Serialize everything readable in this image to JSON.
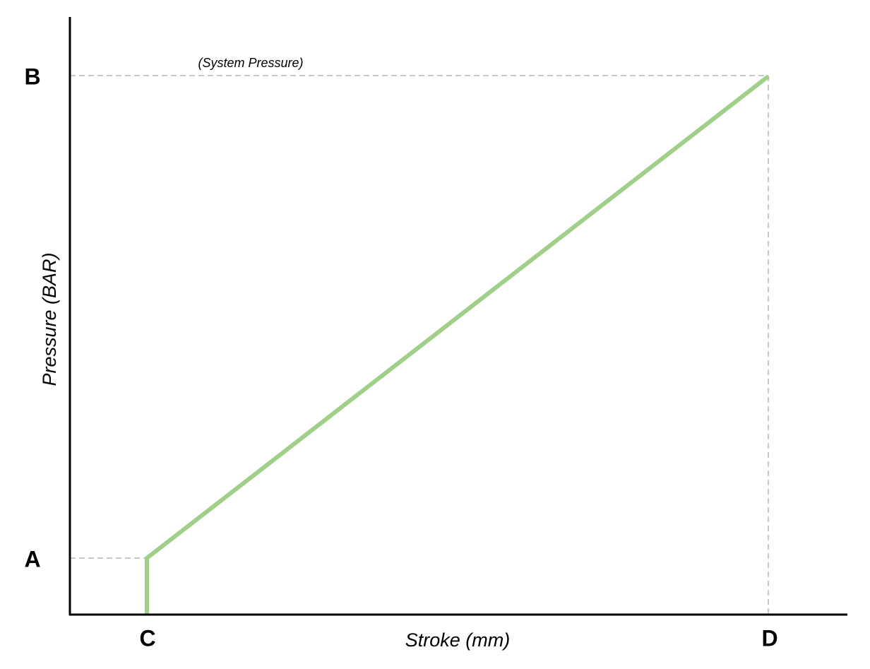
{
  "axes": {
    "y_label": "Pressure (BAR)",
    "x_label": "Stroke (mm)"
  },
  "annotation": "(System Pressure)",
  "points": {
    "y_low": "A",
    "y_high": "B",
    "x_start": "C",
    "x_end": "D"
  }
}
